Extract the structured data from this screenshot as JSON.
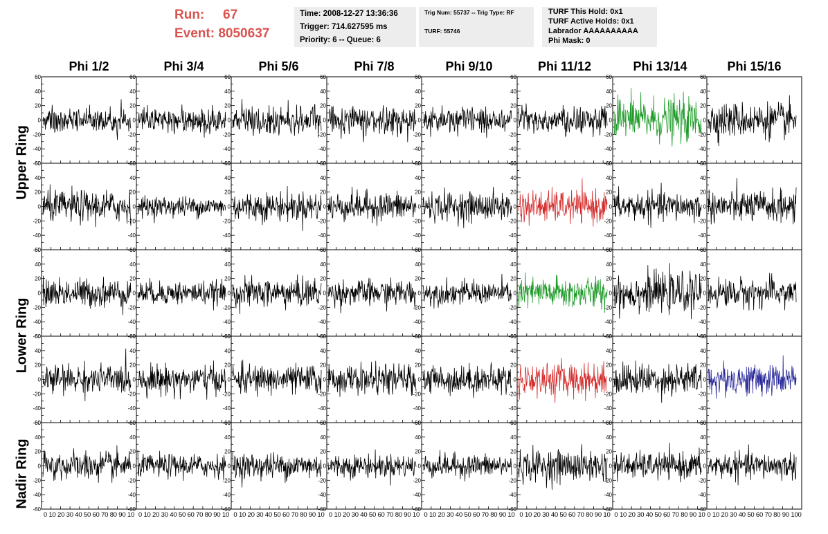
{
  "run_label": "Run:",
  "run_value": "67",
  "event_label": "Event:",
  "event_value": "8050637",
  "box1": {
    "time": "Time: 2008-12-27 13:36:36",
    "trigger": "Trigger: 714.627595 ms",
    "priority": "Priority: 6 -- Queue: 6"
  },
  "box2": {
    "trig": "Trig Num: 55737 -- Trig Type: RF",
    "turf": "TURF: 55746"
  },
  "box3": {
    "hold": "TURF This Hold: 0x1",
    "active": "TURF Active Holds: 0x1",
    "labrador": "Labrador AAAAAAAAAA",
    "phimask": "Phi Mask: 0"
  },
  "colors": {
    "normal": "#000000",
    "green": "#1e9a28",
    "red": "#d42a2a",
    "blue": "#26269a"
  },
  "chart_data": {
    "type": "line",
    "columns": [
      "Phi 1/2",
      "Phi 3/4",
      "Phi 5/6",
      "Phi 7/8",
      "Phi 9/10",
      "Phi 11/12",
      "Phi 13/14",
      "Phi 15/16"
    ],
    "ring_labels": [
      {
        "label": "Upper Ring"
      },
      {
        "label": "Lower Ring"
      },
      {
        "label": "Nadir Ring"
      }
    ],
    "ylim": [
      -60,
      60
    ],
    "xlim": [
      0,
      100
    ],
    "y_ticks": [
      "60",
      "40",
      "20",
      "0",
      "-20",
      "-40",
      "-60"
    ],
    "x_tick_labels": [
      "0 10 20 30 40 50 60 70 80 90 10",
      "0 10 20 30 40 50 60 70 80 90 10",
      "0 10 20 30 40 50 60 70 80 90 10",
      "0 10 20 30 40 50 60 70 80 90 10",
      "0 10 20 30 40 50 60 70 80 90 10",
      "0 10 20 30 40 50 60 70 80 90 10",
      "0 10 20 30 40 50 60 70 80 90 10",
      "0 10 20 30 40 50 60 70 80 90 100"
    ],
    "waveform_rows": 5,
    "series_style": [
      [
        "normal",
        "normal",
        "normal",
        "normal",
        "normal",
        "normal",
        "green",
        "normal"
      ],
      [
        "normal",
        "normal",
        "normal",
        "normal",
        "normal",
        "red",
        "normal",
        "normal"
      ],
      [
        "normal",
        "normal",
        "normal",
        "normal",
        "normal",
        "green",
        "normal",
        "normal"
      ],
      [
        "normal",
        "normal",
        "normal",
        "normal",
        "normal",
        "red",
        "normal",
        "blue"
      ],
      [
        "normal",
        "normal",
        "normal",
        "normal",
        "normal",
        "normal",
        "normal",
        "normal"
      ]
    ],
    "amplitude_rms": [
      [
        9,
        9,
        10,
        9,
        9,
        10,
        15,
        12
      ],
      [
        11,
        7,
        10,
        10,
        10,
        11,
        10,
        11
      ],
      [
        10,
        8,
        10,
        9,
        8,
        11,
        13,
        10
      ],
      [
        10,
        10,
        10,
        10,
        10,
        12,
        11,
        11
      ],
      [
        10,
        8,
        9,
        8,
        8,
        11,
        9,
        9
      ]
    ]
  }
}
